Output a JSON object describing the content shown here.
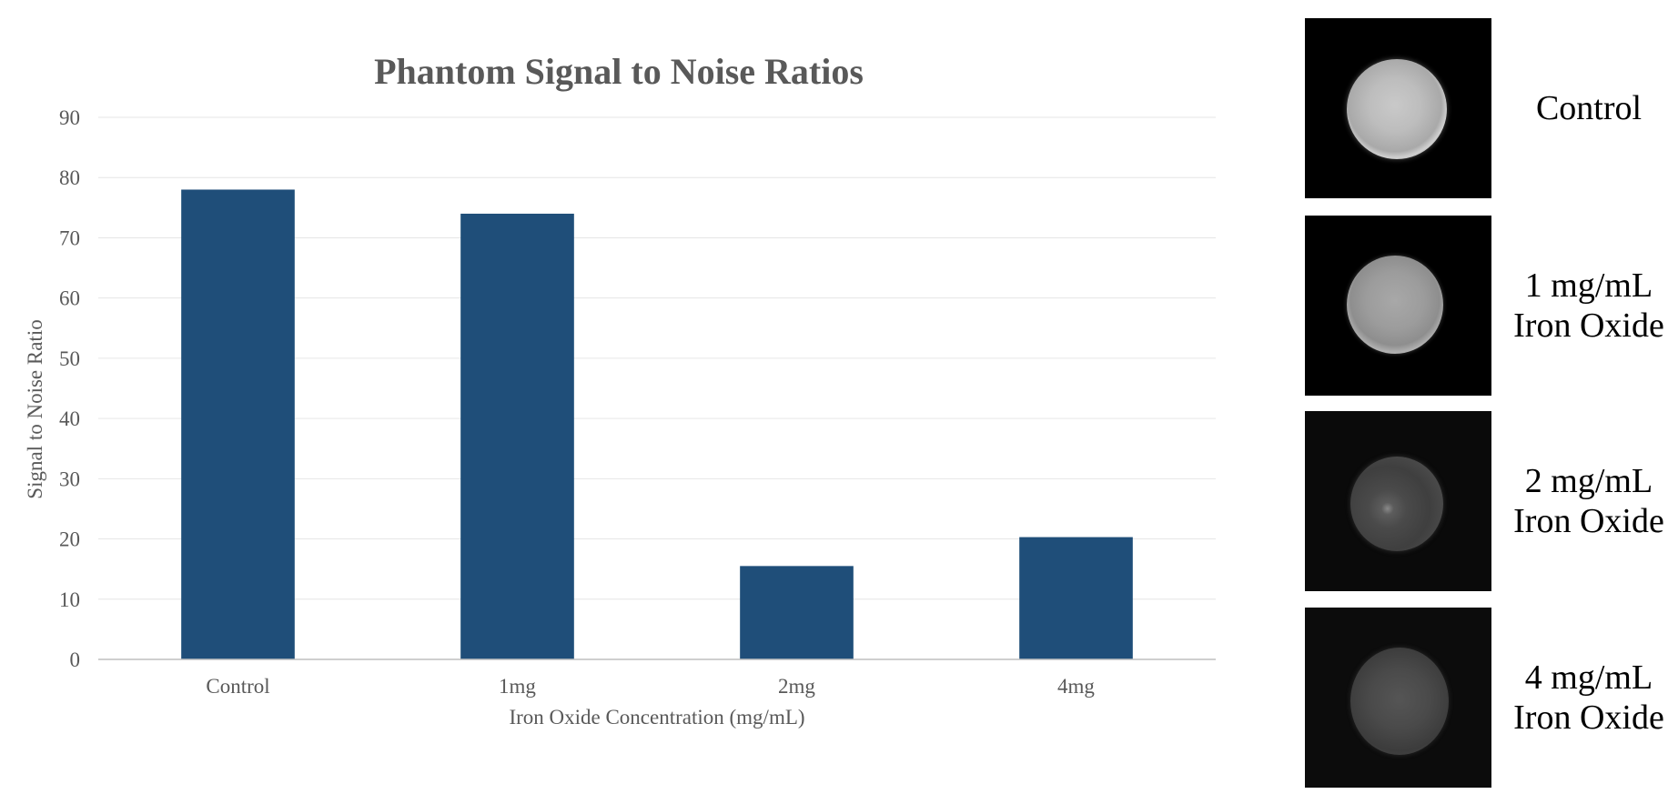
{
  "chart_data": {
    "type": "bar",
    "title": "Phantom Signal to Noise Ratios",
    "xlabel": "Iron Oxide Concentration (mg/mL)",
    "ylabel": "Signal to Noise Ratio",
    "categories": [
      "Control",
      "1mg",
      "2mg",
      "4mg"
    ],
    "values": [
      78,
      74,
      15.5,
      20.3
    ],
    "ylim": [
      0,
      90
    ],
    "yticks": [
      0,
      10,
      20,
      30,
      40,
      50,
      60,
      70,
      80,
      90
    ],
    "grid": true,
    "bar_color": "#1f4e79"
  },
  "phantoms": [
    {
      "line1": "Control",
      "line2": ""
    },
    {
      "line1": "1 mg/mL",
      "line2": "Iron Oxide"
    },
    {
      "line1": "2 mg/mL",
      "line2": "Iron Oxide"
    },
    {
      "line1": "4 mg/mL",
      "line2": "Iron Oxide"
    }
  ]
}
